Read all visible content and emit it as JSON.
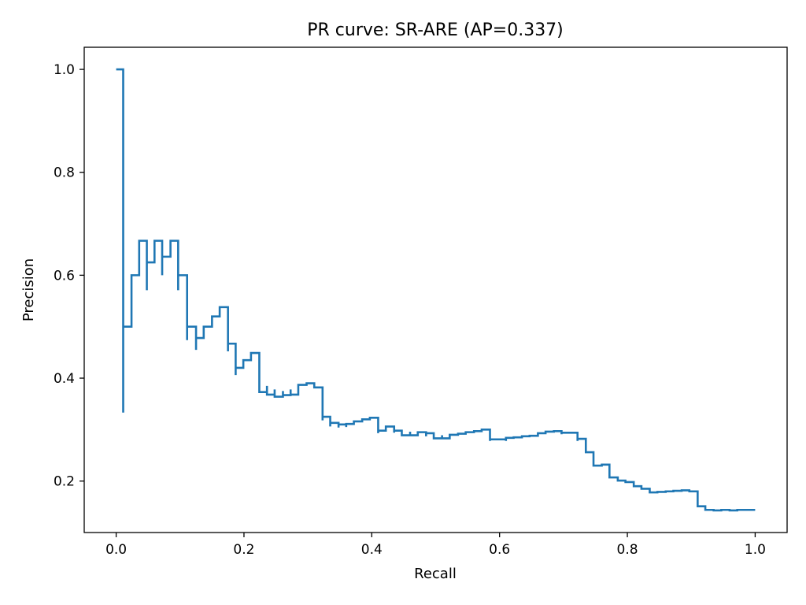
{
  "chart_data": {
    "type": "line",
    "title": "PR curve: SR-ARE (AP=0.337)",
    "xlabel": "Recall",
    "ylabel": "Precision",
    "xlim": [
      -0.05,
      1.05
    ],
    "ylim": [
      0.1,
      1.043
    ],
    "xticks": [
      0.0,
      0.2,
      0.4,
      0.6,
      0.8,
      1.0
    ],
    "xtick_labels": [
      "0.0",
      "0.2",
      "0.4",
      "0.6",
      "0.8",
      "1.0"
    ],
    "yticks": [
      0.2,
      0.4,
      0.6,
      0.8,
      1.0
    ],
    "ytick_labels": [
      "0.2",
      "0.4",
      "0.6",
      "0.8",
      "1.0"
    ],
    "grid": false,
    "legend": "none",
    "line_color": "#1f77b4",
    "drawstyle": "steps-post",
    "series": [
      {
        "x": [
          0.0,
          0.011,
          0.011,
          0.024,
          0.036,
          0.048,
          0.048,
          0.06,
          0.072,
          0.072,
          0.085,
          0.097,
          0.097,
          0.109,
          0.111,
          0.111,
          0.125,
          0.125,
          0.137,
          0.15,
          0.162,
          0.175,
          0.175,
          0.187,
          0.187,
          0.199,
          0.211,
          0.224,
          0.236,
          0.236,
          0.248,
          0.248,
          0.261,
          0.261,
          0.273,
          0.273,
          0.285,
          0.298,
          0.31,
          0.323,
          0.323,
          0.335,
          0.335,
          0.348,
          0.348,
          0.36,
          0.36,
          0.372,
          0.385,
          0.397,
          0.41,
          0.41,
          0.422,
          0.435,
          0.435,
          0.447,
          0.46,
          0.46,
          0.472,
          0.485,
          0.485,
          0.497,
          0.51,
          0.51,
          0.522,
          0.535,
          0.547,
          0.56,
          0.572,
          0.585,
          0.585,
          0.597,
          0.61,
          0.61,
          0.622,
          0.635,
          0.647,
          0.66,
          0.672,
          0.685,
          0.697,
          0.697,
          0.71,
          0.722,
          0.722,
          0.735,
          0.747,
          0.76,
          0.772,
          0.785,
          0.797,
          0.81,
          0.822,
          0.835,
          0.847,
          0.86,
          0.872,
          0.885,
          0.897,
          0.91,
          0.922,
          0.935,
          0.947,
          0.96,
          0.972,
          0.985,
          1.0
        ],
        "y": [
          1.0,
          0.333,
          0.5,
          0.6,
          0.667,
          0.571,
          0.625,
          0.667,
          0.6,
          0.636,
          0.667,
          0.571,
          0.6,
          0.6,
          0.474,
          0.5,
          0.455,
          0.478,
          0.5,
          0.52,
          0.538,
          0.452,
          0.467,
          0.406,
          0.42,
          0.435,
          0.449,
          0.373,
          0.385,
          0.368,
          0.378,
          0.364,
          0.375,
          0.367,
          0.378,
          0.368,
          0.387,
          0.39,
          0.382,
          0.318,
          0.325,
          0.306,
          0.313,
          0.304,
          0.31,
          0.305,
          0.311,
          0.316,
          0.32,
          0.323,
          0.293,
          0.298,
          0.306,
          0.294,
          0.298,
          0.289,
          0.296,
          0.289,
          0.295,
          0.287,
          0.293,
          0.283,
          0.289,
          0.283,
          0.29,
          0.292,
          0.295,
          0.297,
          0.3,
          0.278,
          0.281,
          0.281,
          0.278,
          0.284,
          0.285,
          0.287,
          0.288,
          0.293,
          0.296,
          0.297,
          0.291,
          0.294,
          0.294,
          0.278,
          0.282,
          0.256,
          0.23,
          0.232,
          0.207,
          0.201,
          0.198,
          0.19,
          0.185,
          0.178,
          0.179,
          0.18,
          0.181,
          0.182,
          0.18,
          0.151,
          0.144,
          0.143,
          0.144,
          0.143,
          0.144,
          0.144,
          0.144
        ]
      }
    ]
  }
}
